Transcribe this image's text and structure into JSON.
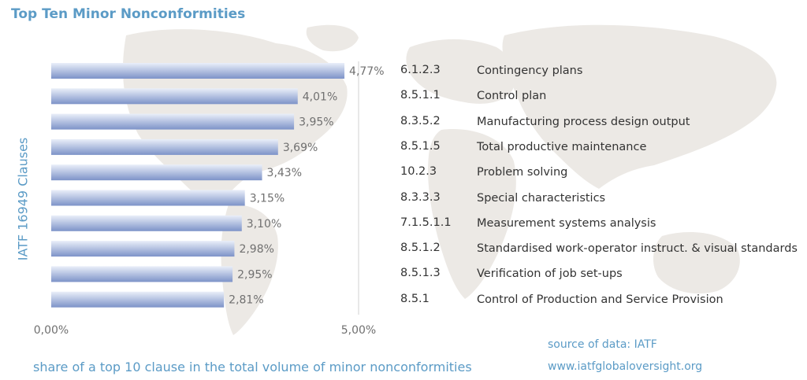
{
  "title": "Top Ten Minor Nonconformities",
  "colors": {
    "accent": "#5b9bc6",
    "bar_light": "#dfe6f5",
    "bar_dark": "#7d93c8"
  },
  "chart_data": {
    "type": "bar",
    "orientation": "horizontal",
    "categories": [
      "Contingency plans",
      "Control plan",
      "Manufacturing process design output",
      "Total productive maintenance",
      "Problem solving",
      "Special characteristics",
      "Measurement systems analysis",
      "Standardised work-operator instruct. & visual standards",
      "Verification of job set-ups",
      "Control of Production and Service Provision"
    ],
    "clauses": [
      "6.1.2.3",
      "8.5.1.1",
      "8.3.5.2",
      "8.5.1.5",
      "10.2.3",
      "8.3.3.3",
      "7.1.5.1.1",
      "8.5.1.2",
      "8.5.1.3",
      "8.5.1"
    ],
    "values": [
      4.77,
      4.01,
      3.95,
      3.69,
      3.43,
      3.15,
      3.1,
      2.98,
      2.95,
      2.81
    ],
    "value_labels": [
      "4,77%",
      "4,01%",
      "3,95%",
      "3,69%",
      "3,43%",
      "3,15%",
      "3,10%",
      "2,98%",
      "2,95%",
      "2,81%"
    ],
    "xlim": [
      0,
      5
    ],
    "xticks": [
      "0,00%",
      "5,00%"
    ],
    "ylabel": "IATF 16949 Clauses",
    "xlabel": "share of a top 10 clause in the total volume of minor nonconformities",
    "grid": false
  },
  "source": {
    "line1": "source of data: IATF",
    "line2": "www.iatfglobaloversight.org"
  }
}
